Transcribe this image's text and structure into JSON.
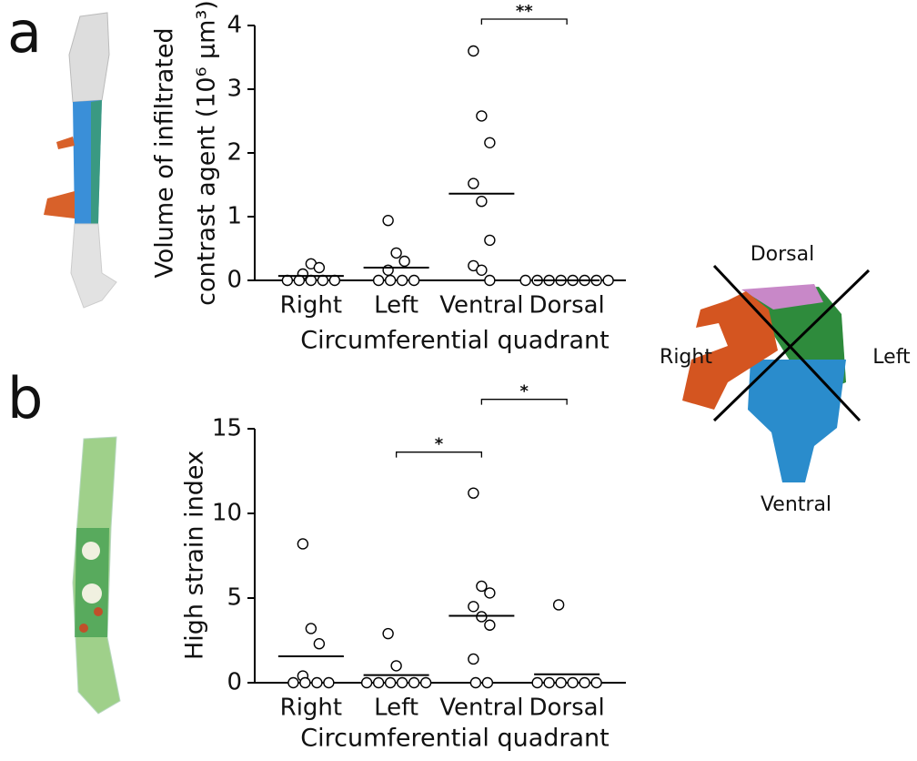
{
  "panel_labels": [
    "a",
    "b"
  ],
  "chart_data": [
    {
      "type": "strip",
      "ylabel": [
        "Volume of infiltrated",
        "contrast agent (10⁶ µm³)"
      ],
      "xlabel": "Circumferential quadrant",
      "categories": [
        "Right",
        "Left",
        "Ventral",
        "Dorsal"
      ],
      "values": [
        [
          0.1,
          0.26,
          0.2,
          0,
          0,
          0,
          0,
          0
        ],
        [
          0.94,
          0.43,
          0.3,
          0.16,
          0,
          0,
          0,
          0
        ],
        [
          3.6,
          2.58,
          2.16,
          1.52,
          1.24,
          0.63,
          0.23,
          0.16,
          0
        ],
        [
          0,
          0,
          0,
          0,
          0,
          0,
          0,
          0
        ]
      ],
      "medians": [
        0.07,
        0.2,
        1.36,
        0
      ],
      "ylim": [
        0,
        4
      ],
      "yticks": [
        0,
        1,
        2,
        3,
        4
      ],
      "significance": [
        {
          "label": "**",
          "between": [
            "Ventral",
            "Dorsal"
          ]
        }
      ]
    },
    {
      "type": "strip",
      "ylabel": [
        "High strain index"
      ],
      "xlabel": "Circumferential quadrant",
      "categories": [
        "Right",
        "Left",
        "Ventral",
        "Dorsal"
      ],
      "values": [
        [
          8.2,
          3.2,
          2.3,
          0.4,
          0,
          0,
          0,
          0
        ],
        [
          2.9,
          1.0,
          0,
          0,
          0,
          0,
          0,
          0
        ],
        [
          11.2,
          5.7,
          5.3,
          4.5,
          3.9,
          3.4,
          1.4,
          0,
          0
        ],
        [
          4.6,
          0,
          0,
          0,
          0,
          0,
          0
        ]
      ],
      "medians": [
        1.56,
        0.45,
        3.95,
        0.5
      ],
      "ylim": [
        0,
        15
      ],
      "yticks": [
        0,
        5,
        10,
        15
      ],
      "significance": [
        {
          "label": "*",
          "between": [
            "Left",
            "Ventral"
          ]
        },
        {
          "label": "*",
          "between": [
            "Ventral",
            "Dorsal"
          ]
        }
      ]
    }
  ],
  "diagram": {
    "dorsal": "Dorsal",
    "right": "Right",
    "left": "Left",
    "ventral": "Ventral"
  }
}
